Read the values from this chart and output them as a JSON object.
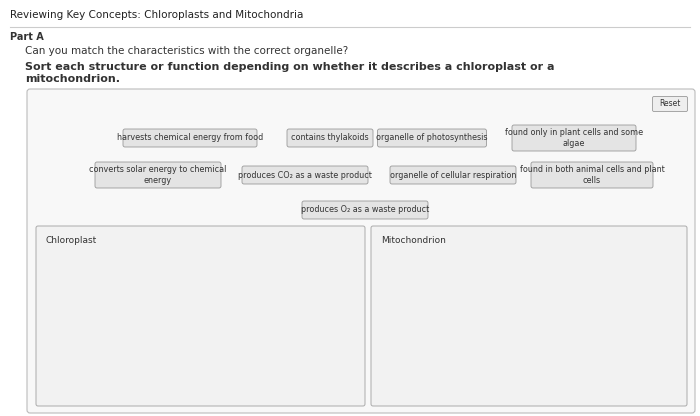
{
  "title": "Reviewing Key Concepts: Chloroplasts and Mitochondria",
  "part_label": "Part A",
  "question1": "Can you match the characteristics with the correct organelle?",
  "question2_line1": "Sort each structure or function depending on whether it describes a chloroplast or a",
  "question2_line2": "mitochondrion.",
  "reset_label": "Reset",
  "row1_chips": [
    "harvests chemical energy from food",
    "contains thylakoids",
    "organelle of photosynthesis",
    "found only in plant cells and some\nalgae"
  ],
  "row2_chips": [
    "converts solar energy to chemical\nenergy",
    "produces CO₂ as a waste product",
    "organelle of cellular respiration",
    "found in both animal cells and plant\ncells"
  ],
  "row3_chips": [
    "produces O₂ as a waste product"
  ],
  "box1_label": "Chloroplast",
  "box2_label": "Mitochondrion",
  "chip_bg": "#e4e4e4",
  "chip_border": "#999999",
  "box_bg": "#f2f2f2",
  "box_border": "#aaaaaa",
  "outer_box_bg": "#f8f8f8",
  "outer_box_border": "#bbbbbb",
  "title_color": "#222222",
  "text_color": "#333333",
  "chip_font_size": 5.8,
  "title_font_size": 7.5,
  "part_font_size": 7.0,
  "q1_font_size": 7.5,
  "q2_font_size": 8.0,
  "label_font_size": 6.5
}
